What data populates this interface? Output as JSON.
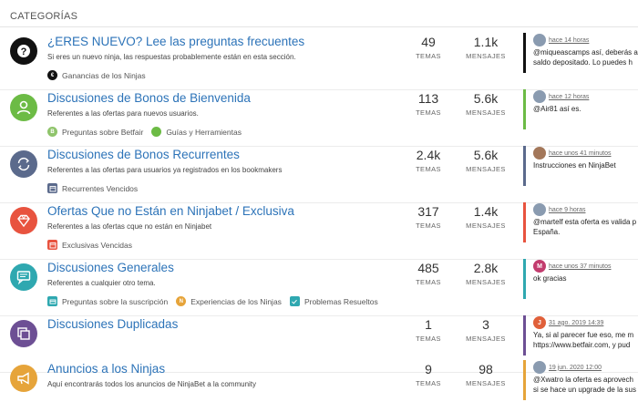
{
  "header": {
    "title": "CATEGORÍAS"
  },
  "labels": {
    "topics": "TEMAS",
    "posts": "MENSAJES"
  },
  "categories": [
    {
      "title": "¿ERES NUEVO? Lee las preguntas frecuentes",
      "description": "Si eres un nuevo ninja, las respuestas probablemente están en esta sección.",
      "topics": "49",
      "posts": "1.1k",
      "icon": "question-icon",
      "color": "#111111",
      "bar_color": "#111111",
      "subcategories": [
        {
          "label": "Ganancias de los Ninjas",
          "icon": "euro-icon"
        }
      ],
      "latest": {
        "time": "hace 14 horas",
        "lines": [
          "@miqueascamps así, deberás a",
          "saldo depositado. Lo puedes h"
        ]
      }
    },
    {
      "title": "Discusiones de Bonos de Bienvenida",
      "description": "Referentes a las ofertas para nuevos usuarios.",
      "topics": "113",
      "posts": "5.6k",
      "icon": "user-icon",
      "color": "#6cbb45",
      "bar_color": "#6cbb45",
      "subcategories": [
        {
          "label": "Preguntas sobre Betfair",
          "icon": "b-icon"
        },
        {
          "label": "Guías y Herramientas",
          "icon": "circle-icon"
        }
      ],
      "latest": {
        "time": "hace 12 horas",
        "lines": [
          "@Air81 así es."
        ]
      }
    },
    {
      "title": "Discusiones de Bonos Recurrentes",
      "description": "Referentes a las ofertas para usuarios ya registrados en los bookmakers",
      "topics": "2.4k",
      "posts": "5.6k",
      "icon": "refresh-icon",
      "color": "#5b6a8c",
      "bar_color": "#5b6a8c",
      "subcategories": [
        {
          "label": "Recurrentes Vencidos",
          "icon": "calendar-icon"
        }
      ],
      "latest": {
        "time": "hace unos 41 minutos",
        "lines": [
          "Instrucciones en NinjaBet"
        ]
      }
    },
    {
      "title": "Ofertas Que no Están en Ninjabet / Exclusiva",
      "description": "Referentes a las ofertas cque no están en Ninjabet",
      "topics": "317",
      "posts": "1.4k",
      "icon": "gem-icon",
      "color": "#e8533f",
      "bar_color": "#e8533f",
      "subcategories": [
        {
          "label": "Exclusivas Vencidas",
          "icon": "calendar-icon"
        }
      ],
      "latest": {
        "time": "hace 9 horas",
        "lines": [
          "@martelf esta oferta es valida p",
          "España."
        ]
      }
    },
    {
      "title": "Discusiones Generales",
      "description": "Referentes a cualquier otro tema.",
      "topics": "485",
      "posts": "2.8k",
      "icon": "comment-icon",
      "color": "#2fa8b0",
      "bar_color": "#2fa8b0",
      "subcategories": [
        {
          "label": "Preguntas sobre la suscripción",
          "icon": "card-icon"
        },
        {
          "label": "Experiencias de los Ninjas",
          "icon": "ninja-icon"
        },
        {
          "label": "Problemas Resueltos",
          "icon": "check-icon"
        }
      ],
      "latest": {
        "time": "hace unos 37 minutos",
        "lines": [
          "ok gracias"
        ]
      }
    },
    {
      "title": "Discusiones Duplicadas",
      "description": "",
      "topics": "1",
      "posts": "3",
      "icon": "copy-icon",
      "color": "#6d4f94",
      "bar_color": "#6d4f94",
      "subcategories": [],
      "latest": {
        "time": "31 ago. 2019 14:39",
        "lines": [
          "Ya, si al parecer fue eso, me m",
          "https://www.betfair.com, y pud"
        ]
      }
    },
    {
      "title": "Anuncios a los Ninjas",
      "description": "Aquí encontrarás todos los anuncios de NinjaBet a la community",
      "topics": "9",
      "posts": "98",
      "icon": "megaphone-icon",
      "color": "#e6a43a",
      "bar_color": "#e6a43a",
      "subcategories": [],
      "latest": {
        "time": "19 jun. 2020 12:00",
        "lines": [
          "@Xwatro la oferta es aprovech",
          "si se hace un upgrade de la sus"
        ]
      }
    }
  ]
}
